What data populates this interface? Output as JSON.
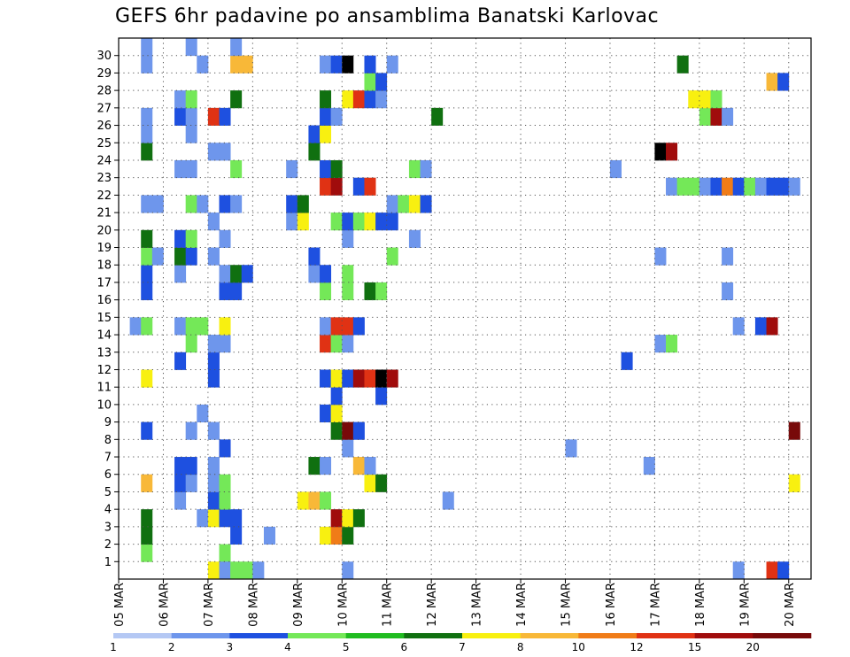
{
  "chart_data": {
    "type": "heatmap",
    "title": "GEFS 6hr padavine po ansamblima Banatski Karlovac",
    "xlabel": "",
    "ylabel": "",
    "x_ticks": [
      "05 MAR",
      "06 MAR",
      "07 MAR",
      "08 MAR",
      "09 MAR",
      "10 MAR",
      "11 MAR",
      "12 MAR",
      "13 MAR",
      "14 MAR",
      "15 MAR",
      "16 MAR",
      "17 MAR",
      "18 MAR",
      "19 MAR",
      "20 MAR"
    ],
    "y_ticks": [
      "1",
      "2",
      "3",
      "4",
      "5",
      "6",
      "7",
      "8",
      "9",
      "10",
      "11",
      "12",
      "13",
      "14",
      "15",
      "16",
      "17",
      "18",
      "19",
      "20",
      "21",
      "22",
      "23",
      "24",
      "25",
      "26",
      "27",
      "28",
      "29",
      "30"
    ],
    "x_range": [
      0,
      61
    ],
    "y_range": [
      0,
      30
    ],
    "grid": true,
    "colorbar": {
      "levels": [
        1,
        2,
        3,
        4,
        5,
        6,
        7,
        8,
        10,
        12,
        15,
        20
      ],
      "labels": [
        "1",
        "2",
        "3",
        "4",
        "5",
        "6",
        "7",
        "8",
        "10",
        "12",
        "15",
        "20"
      ],
      "colors": [
        "#b4c8f4",
        "#6e96ec",
        "#1e50e0",
        "#74e858",
        "#20bc20",
        "#107010",
        "#f8f010",
        "#f8b838",
        "#f07c18",
        "#e03214",
        "#a00c0c",
        "#780a0a"
      ]
    },
    "cells": [
      [
        2,
        1,
        3
      ],
      [
        9,
        1,
        3
      ],
      [
        2,
        2,
        5
      ],
      [
        10,
        2,
        2
      ],
      [
        13,
        2,
        1
      ],
      [
        18,
        2,
        6
      ],
      [
        19,
        2,
        8
      ],
      [
        20,
        2,
        5
      ],
      [
        2,
        3,
        5
      ],
      [
        7,
        3,
        1
      ],
      [
        8,
        3,
        6
      ],
      [
        9,
        3,
        2
      ],
      [
        10,
        3,
        2
      ],
      [
        19,
        3,
        10
      ],
      [
        20,
        3,
        6
      ],
      [
        21,
        3,
        5
      ],
      [
        5,
        4,
        1
      ],
      [
        8,
        4,
        2
      ],
      [
        9,
        4,
        3
      ],
      [
        16,
        4,
        6
      ],
      [
        17,
        4,
        7
      ],
      [
        18,
        4,
        3
      ],
      [
        29,
        4,
        1
      ],
      [
        2,
        5,
        7
      ],
      [
        5,
        5,
        2
      ],
      [
        6,
        5,
        1
      ],
      [
        8,
        5,
        1
      ],
      [
        9,
        5,
        3
      ],
      [
        22,
        5,
        6
      ],
      [
        23,
        5,
        5
      ],
      [
        60,
        5,
        6
      ],
      [
        5,
        6,
        2
      ],
      [
        6,
        6,
        2
      ],
      [
        8,
        6,
        1
      ],
      [
        17,
        6,
        5
      ],
      [
        18,
        6,
        1
      ],
      [
        21,
        6,
        7
      ],
      [
        22,
        6,
        1
      ],
      [
        47,
        6,
        1
      ],
      [
        9,
        7,
        2
      ],
      [
        20,
        7,
        1
      ],
      [
        40,
        7,
        1
      ],
      [
        2,
        8,
        2
      ],
      [
        6,
        8,
        1
      ],
      [
        8,
        8,
        1
      ],
      [
        19,
        8,
        5
      ],
      [
        20,
        8,
        11
      ],
      [
        21,
        8,
        2
      ],
      [
        60,
        8,
        11
      ],
      [
        7,
        9,
        1
      ],
      [
        18,
        9,
        2
      ],
      [
        19,
        9,
        6
      ],
      [
        19,
        10,
        2
      ],
      [
        23,
        10,
        2
      ],
      [
        2,
        11,
        6
      ],
      [
        8,
        11,
        2
      ],
      [
        18,
        11,
        2
      ],
      [
        19,
        11,
        6
      ],
      [
        20,
        11,
        2
      ],
      [
        21,
        11,
        10
      ],
      [
        22,
        11,
        9
      ],
      [
        23,
        11,
        12
      ],
      [
        24,
        11,
        10
      ],
      [
        5,
        12,
        2
      ],
      [
        8,
        12,
        2
      ],
      [
        45,
        12,
        2
      ],
      [
        6,
        13,
        3
      ],
      [
        8,
        13,
        1
      ],
      [
        9,
        13,
        1
      ],
      [
        18,
        13,
        9
      ],
      [
        19,
        13,
        3
      ],
      [
        20,
        13,
        1
      ],
      [
        48,
        13,
        1
      ],
      [
        49,
        13,
        3
      ],
      [
        1,
        14,
        1
      ],
      [
        2,
        14,
        3
      ],
      [
        5,
        14,
        1
      ],
      [
        6,
        14,
        3
      ],
      [
        7,
        14,
        3
      ],
      [
        9,
        14,
        6
      ],
      [
        18,
        14,
        1
      ],
      [
        19,
        14,
        9
      ],
      [
        20,
        14,
        9
      ],
      [
        21,
        14,
        2
      ],
      [
        55,
        14,
        1
      ],
      [
        57,
        14,
        2
      ],
      [
        58,
        14,
        10
      ],
      [
        2,
        16,
        2
      ],
      [
        9,
        16,
        2
      ],
      [
        10,
        16,
        2
      ],
      [
        18,
        16,
        3
      ],
      [
        20,
        16,
        3
      ],
      [
        22,
        16,
        5
      ],
      [
        23,
        16,
        3
      ],
      [
        54,
        16,
        1
      ],
      [
        2,
        17,
        2
      ],
      [
        5,
        17,
        1
      ],
      [
        9,
        17,
        1
      ],
      [
        10,
        17,
        5
      ],
      [
        11,
        17,
        2
      ],
      [
        17,
        17,
        1
      ],
      [
        18,
        17,
        2
      ],
      [
        20,
        17,
        3
      ],
      [
        2,
        18,
        3
      ],
      [
        3,
        18,
        1
      ],
      [
        5,
        18,
        5
      ],
      [
        6,
        18,
        2
      ],
      [
        8,
        18,
        1
      ],
      [
        17,
        18,
        2
      ],
      [
        24,
        18,
        3
      ],
      [
        48,
        18,
        1
      ],
      [
        54,
        18,
        1
      ],
      [
        2,
        19,
        5
      ],
      [
        5,
        19,
        2
      ],
      [
        6,
        19,
        3
      ],
      [
        9,
        19,
        1
      ],
      [
        20,
        19,
        1
      ],
      [
        26,
        19,
        1
      ],
      [
        8,
        20,
        1
      ],
      [
        15,
        20,
        1
      ],
      [
        16,
        20,
        6
      ],
      [
        19,
        20,
        3
      ],
      [
        20,
        20,
        2
      ],
      [
        21,
        20,
        3
      ],
      [
        22,
        20,
        6
      ],
      [
        23,
        20,
        2
      ],
      [
        24,
        20,
        2
      ],
      [
        2,
        21,
        1
      ],
      [
        3,
        21,
        1
      ],
      [
        6,
        21,
        3
      ],
      [
        7,
        21,
        1
      ],
      [
        9,
        21,
        2
      ],
      [
        10,
        21,
        1
      ],
      [
        15,
        21,
        2
      ],
      [
        16,
        21,
        5
      ],
      [
        24,
        21,
        1
      ],
      [
        25,
        21,
        3
      ],
      [
        26,
        21,
        6
      ],
      [
        27,
        21,
        2
      ],
      [
        18,
        22,
        9
      ],
      [
        19,
        22,
        10
      ],
      [
        21,
        22,
        2
      ],
      [
        22,
        22,
        9
      ],
      [
        49,
        22,
        1
      ],
      [
        50,
        22,
        3
      ],
      [
        51,
        22,
        3
      ],
      [
        52,
        22,
        1
      ],
      [
        53,
        22,
        2
      ],
      [
        54,
        22,
        8
      ],
      [
        55,
        22,
        2
      ],
      [
        56,
        22,
        3
      ],
      [
        57,
        22,
        1
      ],
      [
        58,
        22,
        2
      ],
      [
        59,
        22,
        2
      ],
      [
        60,
        22,
        1
      ],
      [
        5,
        23,
        1
      ],
      [
        6,
        23,
        1
      ],
      [
        10,
        23,
        3
      ],
      [
        15,
        23,
        1
      ],
      [
        18,
        23,
        2
      ],
      [
        19,
        23,
        5
      ],
      [
        26,
        23,
        3
      ],
      [
        27,
        23,
        1
      ],
      [
        44,
        23,
        1
      ],
      [
        2,
        24,
        5
      ],
      [
        8,
        24,
        1
      ],
      [
        9,
        24,
        1
      ],
      [
        17,
        24,
        5
      ],
      [
        48,
        24,
        12
      ],
      [
        49,
        24,
        10
      ],
      [
        2,
        25,
        1
      ],
      [
        6,
        25,
        1
      ],
      [
        17,
        25,
        2
      ],
      [
        18,
        25,
        6
      ],
      [
        2,
        26,
        1
      ],
      [
        5,
        26,
        2
      ],
      [
        6,
        26,
        1
      ],
      [
        8,
        26,
        9
      ],
      [
        9,
        26,
        2
      ],
      [
        18,
        26,
        2
      ],
      [
        19,
        26,
        1
      ],
      [
        28,
        26,
        5
      ],
      [
        52,
        26,
        3
      ],
      [
        53,
        26,
        10
      ],
      [
        54,
        26,
        1
      ],
      [
        5,
        27,
        1
      ],
      [
        6,
        27,
        3
      ],
      [
        10,
        27,
        5
      ],
      [
        18,
        27,
        5
      ],
      [
        20,
        27,
        6
      ],
      [
        21,
        27,
        9
      ],
      [
        22,
        27,
        2
      ],
      [
        23,
        27,
        1
      ],
      [
        51,
        27,
        6
      ],
      [
        52,
        27,
        6
      ],
      [
        53,
        27,
        3
      ],
      [
        22,
        28,
        3
      ],
      [
        23,
        28,
        2
      ],
      [
        58,
        28,
        7
      ],
      [
        59,
        28,
        2
      ],
      [
        2,
        29,
        1
      ],
      [
        7,
        29,
        1
      ],
      [
        10,
        29,
        7
      ],
      [
        11,
        29,
        7
      ],
      [
        18,
        29,
        1
      ],
      [
        19,
        29,
        2
      ],
      [
        20,
        29,
        12
      ],
      [
        22,
        29,
        2
      ],
      [
        24,
        29,
        1
      ],
      [
        50,
        29,
        5
      ],
      [
        2,
        30,
        1
      ],
      [
        6,
        30,
        1
      ],
      [
        10,
        30,
        1
      ],
      [
        8,
        0,
        6
      ],
      [
        9,
        0,
        1
      ],
      [
        10,
        0,
        3
      ],
      [
        11,
        0,
        3
      ],
      [
        12,
        0,
        1
      ],
      [
        20,
        0,
        1
      ],
      [
        55,
        0,
        1
      ],
      [
        58,
        0,
        9
      ],
      [
        59,
        0,
        2
      ]
    ]
  }
}
